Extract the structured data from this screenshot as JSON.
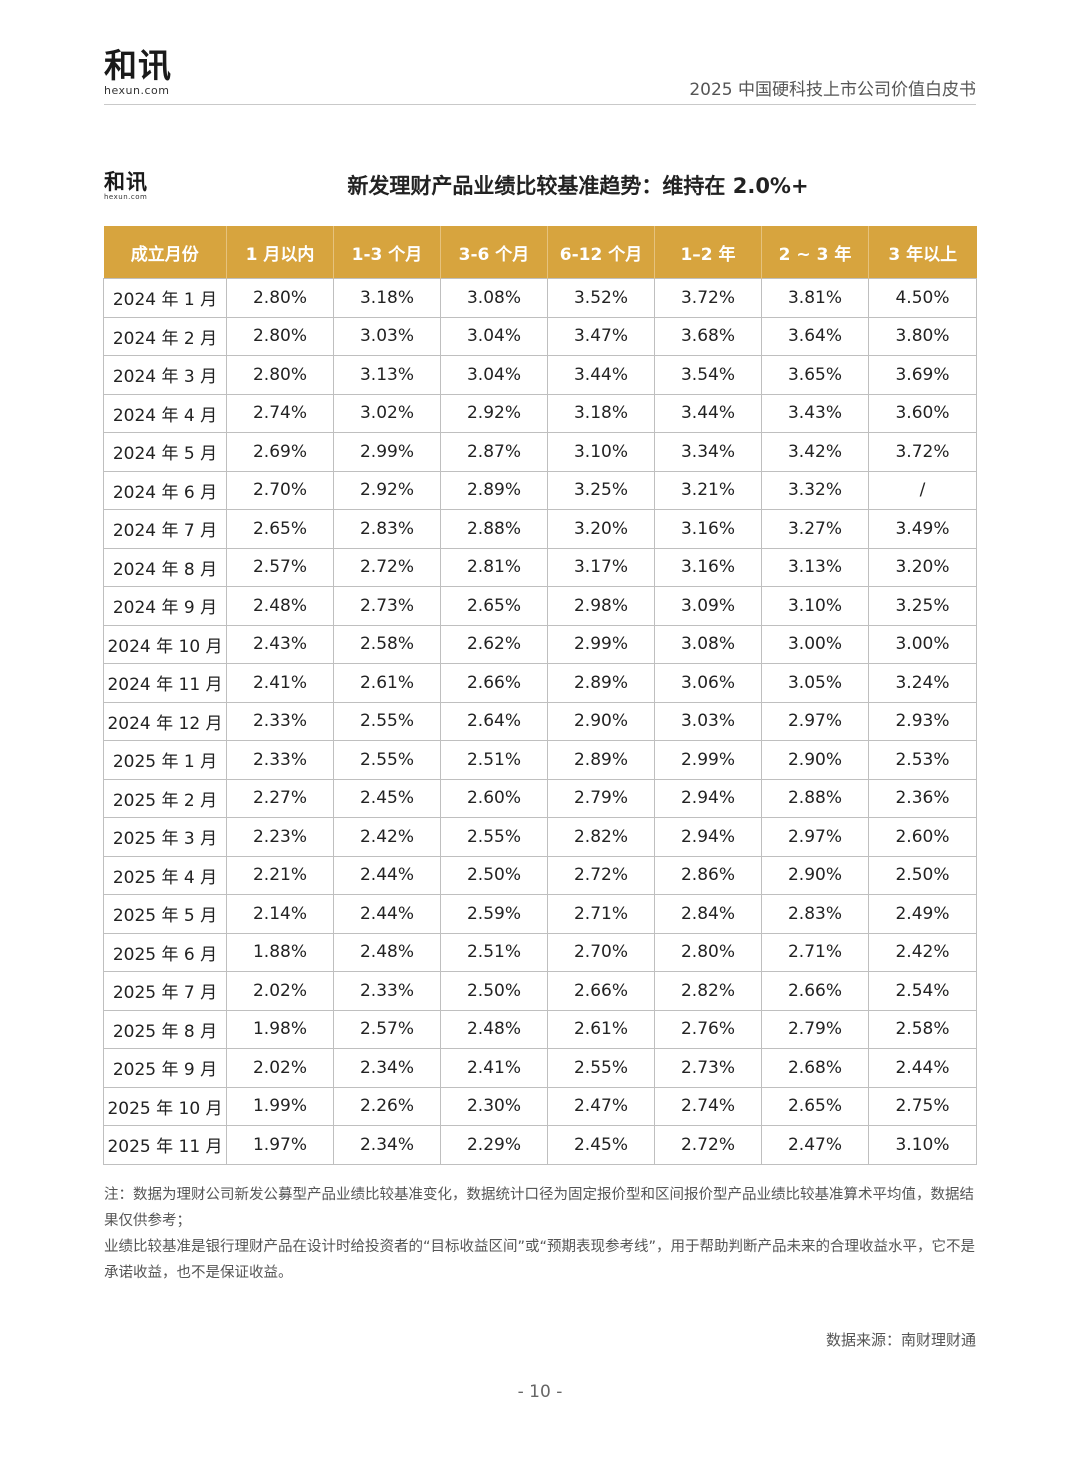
{
  "header": {
    "logo_text": "和讯",
    "logo_sub": "hexun.com",
    "title": "2025 中国硬科技上市公司价值白皮书"
  },
  "section": {
    "logo_text": "和讯",
    "logo_sub": "hexun.com",
    "title": "新发理财产品业绩比较基准趋势：维持在 2.0%+"
  },
  "table": {
    "headers": [
      "成立月份",
      "1 月以内",
      "1-3 个月",
      "3-6 个月",
      "6-12 个月",
      "1–2 年",
      "2 ~ 3 年",
      "3 年以上"
    ],
    "rows": [
      [
        "2024 年 1 月",
        "2.80%",
        "3.18%",
        "3.08%",
        "3.52%",
        "3.72%",
        "3.81%",
        "4.50%"
      ],
      [
        "2024 年 2 月",
        "2.80%",
        "3.03%",
        "3.04%",
        "3.47%",
        "3.68%",
        "3.64%",
        "3.80%"
      ],
      [
        "2024 年 3 月",
        "2.80%",
        "3.13%",
        "3.04%",
        "3.44%",
        "3.54%",
        "3.65%",
        "3.69%"
      ],
      [
        "2024 年 4 月",
        "2.74%",
        "3.02%",
        "2.92%",
        "3.18%",
        "3.44%",
        "3.43%",
        "3.60%"
      ],
      [
        "2024 年 5 月",
        "2.69%",
        "2.99%",
        "2.87%",
        "3.10%",
        "3.34%",
        "3.42%",
        "3.72%"
      ],
      [
        "2024 年 6 月",
        "2.70%",
        "2.92%",
        "2.89%",
        "3.25%",
        "3.21%",
        "3.32%",
        "/"
      ],
      [
        "2024 年 7 月",
        "2.65%",
        "2.83%",
        "2.88%",
        "3.20%",
        "3.16%",
        "3.27%",
        "3.49%"
      ],
      [
        "2024 年 8 月",
        "2.57%",
        "2.72%",
        "2.81%",
        "3.17%",
        "3.16%",
        "3.13%",
        "3.20%"
      ],
      [
        "2024 年 9 月",
        "2.48%",
        "2.73%",
        "2.65%",
        "2.98%",
        "3.09%",
        "3.10%",
        "3.25%"
      ],
      [
        "2024 年 10 月",
        "2.43%",
        "2.58%",
        "2.62%",
        "2.99%",
        "3.08%",
        "3.00%",
        "3.00%"
      ],
      [
        "2024 年 11 月",
        "2.41%",
        "2.61%",
        "2.66%",
        "2.89%",
        "3.06%",
        "3.05%",
        "3.24%"
      ],
      [
        "2024 年 12 月",
        "2.33%",
        "2.55%",
        "2.64%",
        "2.90%",
        "3.03%",
        "2.97%",
        "2.93%"
      ],
      [
        "2025 年 1 月",
        "2.33%",
        "2.55%",
        "2.51%",
        "2.89%",
        "2.99%",
        "2.90%",
        "2.53%"
      ],
      [
        "2025 年 2 月",
        "2.27%",
        "2.45%",
        "2.60%",
        "2.79%",
        "2.94%",
        "2.88%",
        "2.36%"
      ],
      [
        "2025 年 3 月",
        "2.23%",
        "2.42%",
        "2.55%",
        "2.82%",
        "2.94%",
        "2.97%",
        "2.60%"
      ],
      [
        "2025 年 4 月",
        "2.21%",
        "2.44%",
        "2.50%",
        "2.72%",
        "2.86%",
        "2.90%",
        "2.50%"
      ],
      [
        "2025 年 5 月",
        "2.14%",
        "2.44%",
        "2.59%",
        "2.71%",
        "2.84%",
        "2.83%",
        "2.49%"
      ],
      [
        "2025 年 6 月",
        "1.88%",
        "2.48%",
        "2.51%",
        "2.70%",
        "2.80%",
        "2.71%",
        "2.42%"
      ],
      [
        "2025 年 7 月",
        "2.02%",
        "2.33%",
        "2.50%",
        "2.66%",
        "2.82%",
        "2.66%",
        "2.54%"
      ],
      [
        "2025 年 8 月",
        "1.98%",
        "2.57%",
        "2.48%",
        "2.61%",
        "2.76%",
        "2.79%",
        "2.58%"
      ],
      [
        "2025 年 9 月",
        "2.02%",
        "2.34%",
        "2.41%",
        "2.55%",
        "2.73%",
        "2.68%",
        "2.44%"
      ],
      [
        "2025 年 10 月",
        "1.99%",
        "2.26%",
        "2.30%",
        "2.47%",
        "2.74%",
        "2.65%",
        "2.75%"
      ],
      [
        "2025 年 11 月",
        "1.97%",
        "2.34%",
        "2.29%",
        "2.45%",
        "2.72%",
        "2.47%",
        "3.10%"
      ]
    ]
  },
  "notes": [
    "注：数据为理财公司新发公募型产品业绩比较基准变化，数据统计口径为固定报价型和区间报价型产品业绩比较基准算术平均值，数据结果仅供参考；",
    "业绩比较基准是银行理财产品在设计时给投资者的“目标收益区间”或“预期表现参考线”，用于帮助判断产品未来的合理收益水平，它不是承诺收益，也不是保证收益。"
  ],
  "source": "数据来源：南财理财通",
  "page_number": "- 10 -"
}
